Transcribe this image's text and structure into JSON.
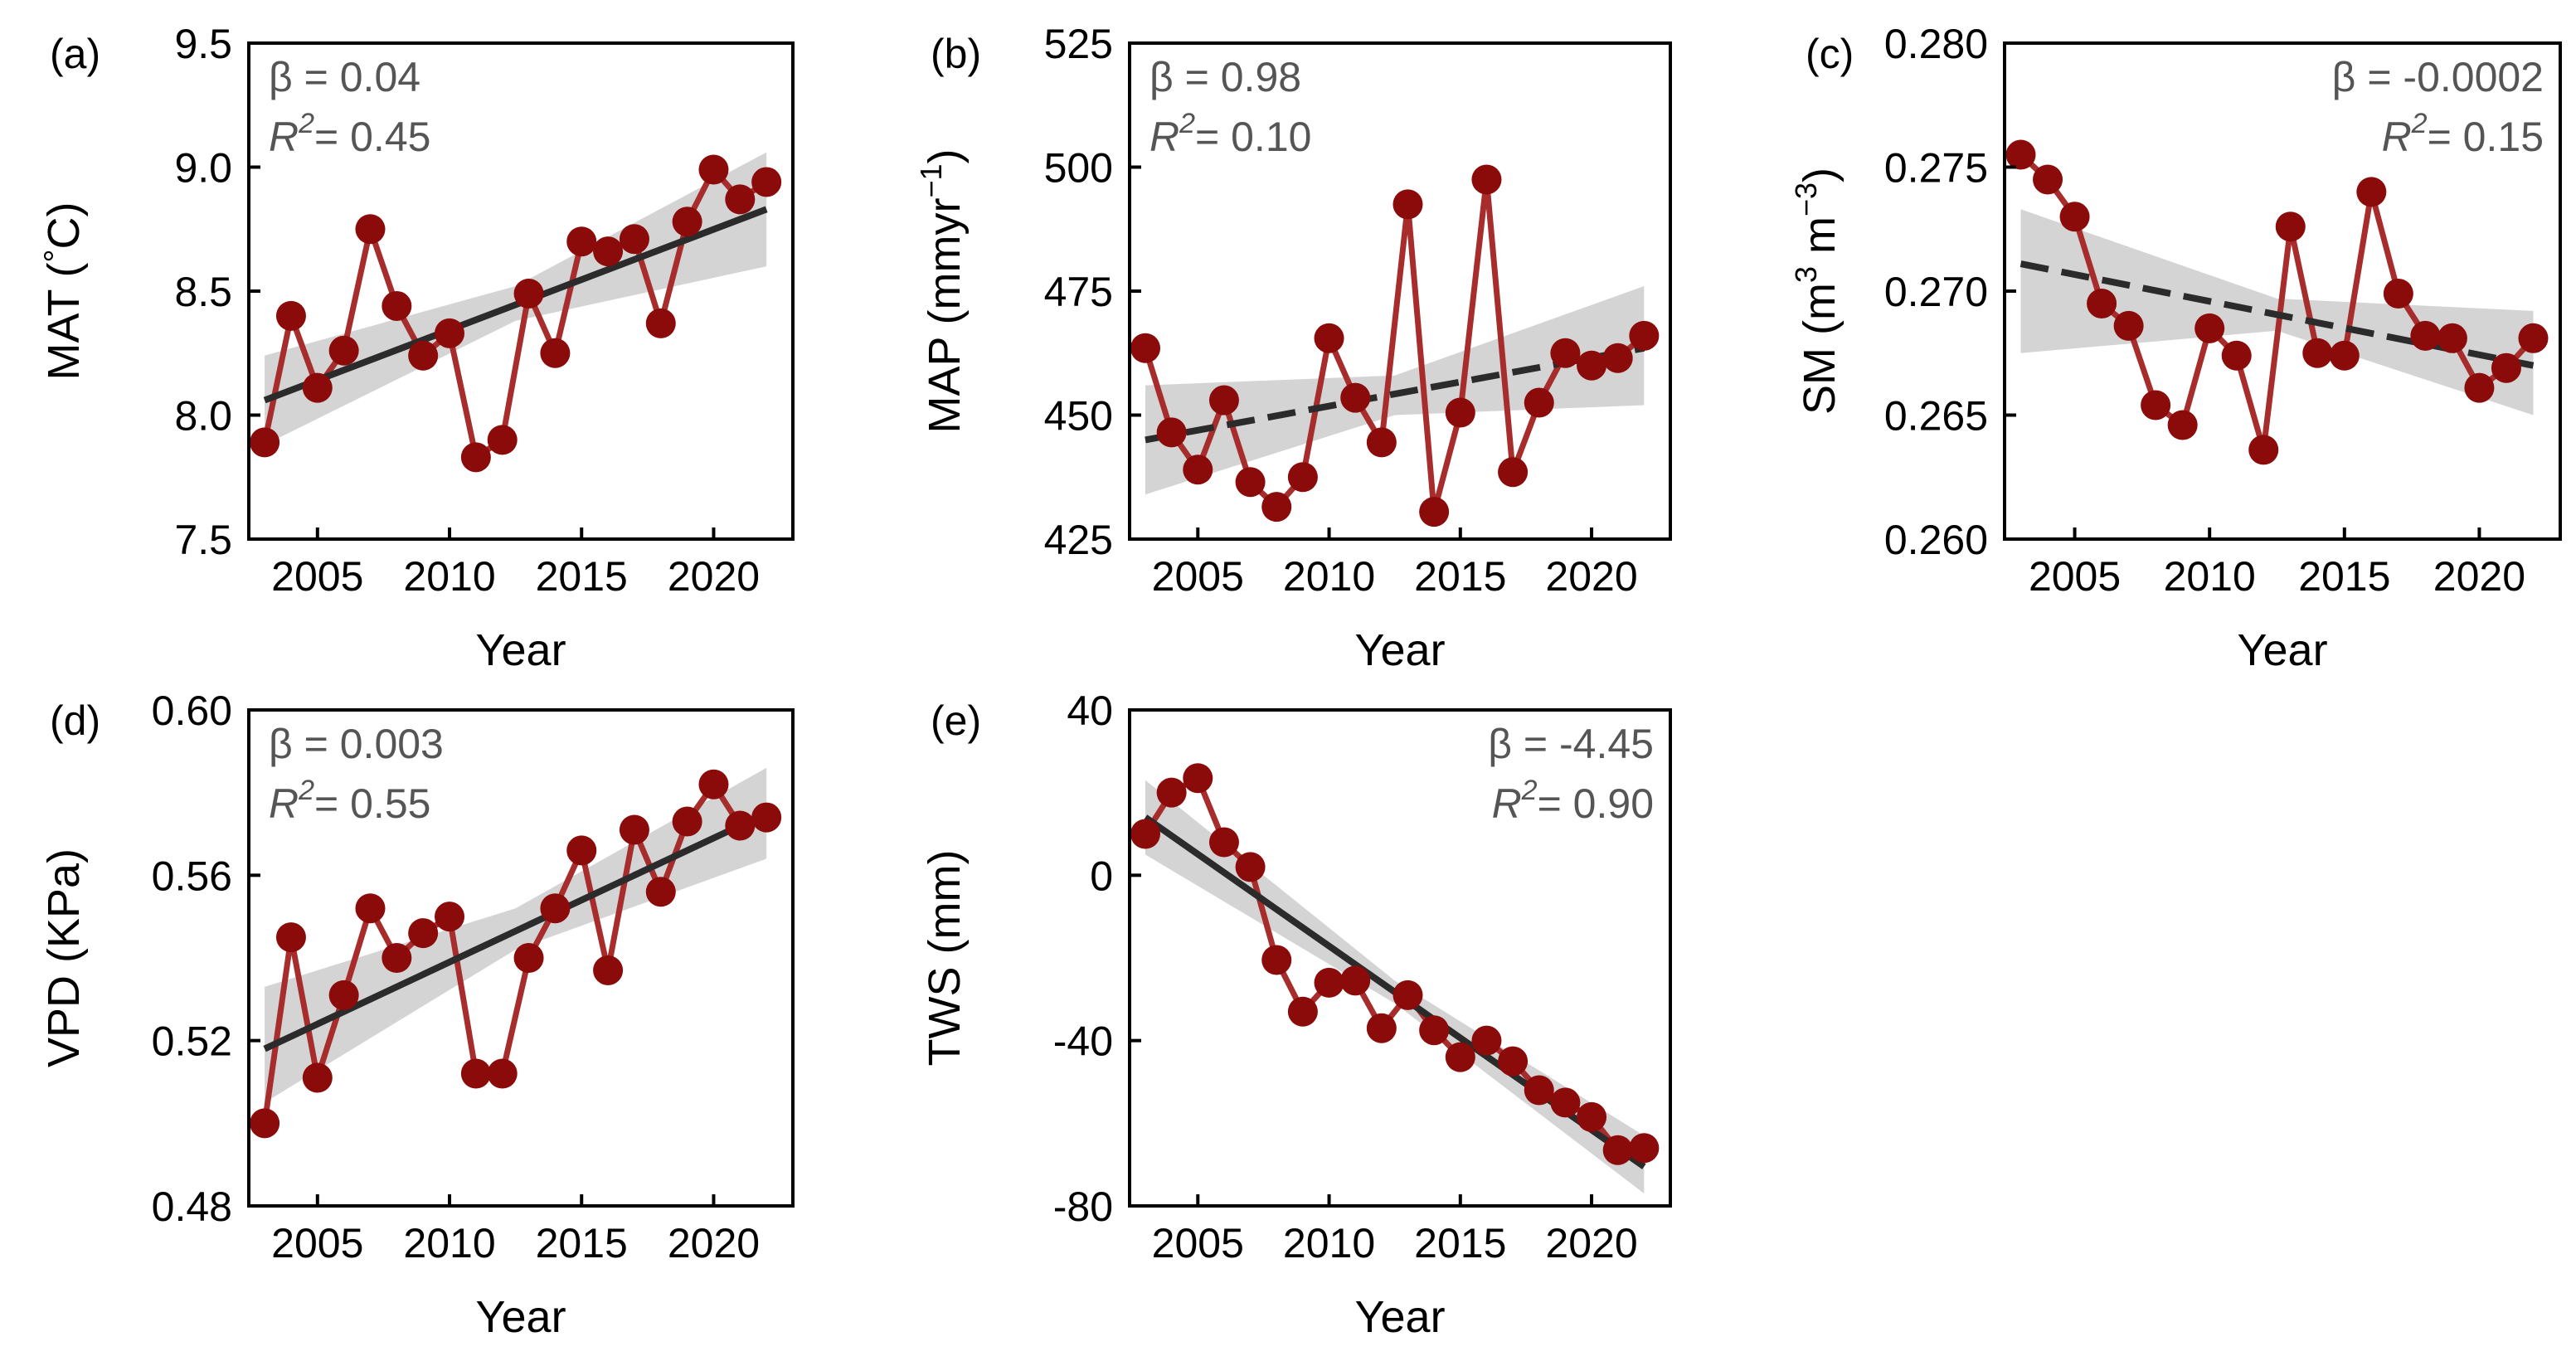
{
  "chart_data": [
    {
      "panel": "(a)",
      "type": "line",
      "xlabel": "Year",
      "ylabel": "MAT (°C)",
      "ylabel_parts": [
        "MAT (",
        "°",
        "C)"
      ],
      "xlim": [
        2002.4,
        2023.0
      ],
      "ylim": [
        7.5,
        9.5
      ],
      "xticks": [
        2005,
        2010,
        2015,
        2020
      ],
      "yticks": [
        7.5,
        8.0,
        8.5,
        9.0,
        9.5
      ],
      "ytick_labels": [
        "7.5",
        "8.0",
        "8.5",
        "9.0",
        "9.5"
      ],
      "x": [
        2003,
        2004,
        2005,
        2006,
        2007,
        2008,
        2009,
        2010,
        2011,
        2012,
        2013,
        2014,
        2015,
        2016,
        2017,
        2018,
        2019,
        2020,
        2021,
        2022
      ],
      "values": [
        7.89,
        8.4,
        8.11,
        8.26,
        8.75,
        8.44,
        8.24,
        8.33,
        7.83,
        7.9,
        8.49,
        8.25,
        8.7,
        8.66,
        8.71,
        8.37,
        8.78,
        8.99,
        8.87,
        8.94
      ],
      "stats": {
        "beta": "β = 0.04",
        "r2_prefix": "R",
        "r2_sup": "2",
        "r2_value": "= 0.45",
        "position": "top-left"
      },
      "trend": {
        "start": [
          2003,
          8.06
        ],
        "end": [
          2022,
          8.83
        ],
        "style": "solid"
      },
      "ci": {
        "start": [
          2003,
          7.88,
          8.24
        ],
        "mid": [
          2012.5,
          8.38,
          8.52
        ],
        "end": [
          2022,
          8.6,
          9.06
        ]
      },
      "colors": {
        "series": "#a72c2c",
        "points": "#8b0a0a",
        "trend": "#2b2b2b",
        "ci": "#d4d4d4"
      }
    },
    {
      "panel": "(b)",
      "type": "line",
      "xlabel": "Year",
      "ylabel": "MAP (mmyr−1)",
      "ylabel_parts": [
        "MAP (mmyr",
        "−1",
        ")"
      ],
      "xlim": [
        2002.4,
        2023.0
      ],
      "ylim": [
        425,
        525
      ],
      "xticks": [
        2005,
        2010,
        2015,
        2020
      ],
      "yticks": [
        425,
        450,
        475,
        500,
        525
      ],
      "ytick_labels": [
        "425",
        "450",
        "475",
        "500",
        "525"
      ],
      "x": [
        2003,
        2004,
        2005,
        2006,
        2007,
        2008,
        2009,
        2010,
        2011,
        2012,
        2013,
        2014,
        2015,
        2016,
        2017,
        2018,
        2019,
        2020,
        2021,
        2022
      ],
      "values": [
        463.5,
        446.5,
        439,
        453,
        436.5,
        431.5,
        437.5,
        465.5,
        453.5,
        444.5,
        492.5,
        430.5,
        450.5,
        497.5,
        438.5,
        452.5,
        462.5,
        460,
        461.5,
        466
      ],
      "stats": {
        "beta": "β = 0.98",
        "r2_prefix": "R",
        "r2_sup": "2",
        "r2_value": "= 0.10",
        "position": "top-left"
      },
      "trend": {
        "start": [
          2003,
          445
        ],
        "end": [
          2022,
          463.5
        ],
        "style": "dashed"
      },
      "ci": {
        "start": [
          2003,
          434,
          456
        ],
        "mid": [
          2012.5,
          450,
          458
        ],
        "end": [
          2022,
          452,
          476
        ]
      },
      "colors": {
        "series": "#a72c2c",
        "points": "#8b0a0a",
        "trend": "#2b2b2b",
        "ci": "#d4d4d4"
      }
    },
    {
      "panel": "(c)",
      "type": "line",
      "xlabel": "Year",
      "ylabel": "SM (m3 m−3)",
      "ylabel_parts": [
        "SM (m",
        "3",
        " m",
        "−3",
        ")"
      ],
      "xlim": [
        2002.4,
        2023.0
      ],
      "ylim": [
        0.26,
        0.28
      ],
      "xticks": [
        2005,
        2010,
        2015,
        2020
      ],
      "yticks": [
        0.26,
        0.265,
        0.27,
        0.275,
        0.28
      ],
      "ytick_labels": [
        "0.260",
        "0.265",
        "0.270",
        "0.275",
        "0.280"
      ],
      "x": [
        2003,
        2004,
        2005,
        2006,
        2007,
        2008,
        2009,
        2010,
        2011,
        2012,
        2013,
        2014,
        2015,
        2016,
        2017,
        2018,
        2019,
        2020,
        2021,
        2022
      ],
      "values": [
        0.2755,
        0.2745,
        0.273,
        0.2695,
        0.2686,
        0.2654,
        0.2646,
        0.2685,
        0.2674,
        0.2636,
        0.2726,
        0.2675,
        0.2674,
        0.274,
        0.2699,
        0.2682,
        0.2681,
        0.2661,
        0.2669,
        0.2681
      ],
      "stats": {
        "beta": "β = -0.0002",
        "r2_prefix": "R",
        "r2_sup": "2",
        "r2_value": "= 0.15",
        "position": "top-right"
      },
      "trend": {
        "start": [
          2003,
          0.2711
        ],
        "end": [
          2022,
          0.267
        ],
        "style": "dashed"
      },
      "ci": {
        "start": [
          2003,
          0.2675,
          0.2733
        ],
        "mid": [
          2012.5,
          0.2684,
          0.2697
        ],
        "end": [
          2022,
          0.265,
          0.2692
        ]
      },
      "colors": {
        "series": "#a72c2c",
        "points": "#8b0a0a",
        "trend": "#2b2b2b",
        "ci": "#d4d4d4"
      }
    },
    {
      "panel": "(d)",
      "type": "line",
      "xlabel": "Year",
      "ylabel": "VPD (KPa)",
      "ylabel_parts": [
        "VPD (KPa)"
      ],
      "xlim": [
        2002.4,
        2023.0
      ],
      "ylim": [
        0.48,
        0.6
      ],
      "xticks": [
        2005,
        2010,
        2015,
        2020
      ],
      "yticks": [
        0.48,
        0.52,
        0.56,
        0.6
      ],
      "ytick_labels": [
        "0.48",
        "0.52",
        "0.56",
        "0.60"
      ],
      "x": [
        2003,
        2004,
        2005,
        2006,
        2007,
        2008,
        2009,
        2010,
        2011,
        2012,
        2013,
        2014,
        2015,
        2016,
        2017,
        2018,
        2019,
        2020,
        2021,
        2022
      ],
      "values": [
        0.5,
        0.545,
        0.511,
        0.531,
        0.552,
        0.54,
        0.546,
        0.55,
        0.512,
        0.512,
        0.54,
        0.552,
        0.566,
        0.537,
        0.571,
        0.556,
        0.573,
        0.582,
        0.572,
        0.574
      ],
      "stats": {
        "beta": "β = 0.003",
        "r2_prefix": "R",
        "r2_sup": "2",
        "r2_value": "= 0.55",
        "position": "top-left"
      },
      "trend": {
        "start": [
          2003,
          0.518
        ],
        "end": [
          2022,
          0.575
        ],
        "style": "solid"
      },
      "ci": {
        "start": [
          2003,
          0.505,
          0.533
        ],
        "mid": [
          2012.5,
          0.542,
          0.552
        ],
        "end": [
          2022,
          0.564,
          0.586
        ]
      },
      "colors": {
        "series": "#a72c2c",
        "points": "#8b0a0a",
        "trend": "#2b2b2b",
        "ci": "#d4d4d4"
      }
    },
    {
      "panel": "(e)",
      "type": "line",
      "xlabel": "Year",
      "ylabel": "TWS (mm)",
      "ylabel_parts": [
        "TWS (mm)"
      ],
      "xlim": [
        2002.4,
        2023.0
      ],
      "ylim": [
        -80,
        40
      ],
      "xticks": [
        2005,
        2010,
        2015,
        2020
      ],
      "yticks": [
        -80,
        -40,
        0,
        40
      ],
      "ytick_labels": [
        "-80",
        "-40",
        "0",
        "40"
      ],
      "x": [
        2003,
        2004,
        2005,
        2006,
        2007,
        2008,
        2009,
        2010,
        2011,
        2012,
        2013,
        2014,
        2015,
        2016,
        2017,
        2018,
        2019,
        2020,
        2021,
        2022
      ],
      "values": [
        10,
        20,
        23.5,
        8,
        2,
        -20.5,
        -33,
        -26,
        -25.5,
        -37,
        -29,
        -37.5,
        -44,
        -40,
        -45,
        -52,
        -55,
        -58.5,
        -66.5,
        -66
      ],
      "stats": {
        "beta": "β = -4.45",
        "r2_prefix": "R",
        "r2_sup": "2",
        "r2_value": "= 0.90",
        "position": "top-right"
      },
      "trend": {
        "start": [
          2003,
          14
        ],
        "end": [
          2022,
          -70.5
        ],
        "style": "solid"
      },
      "ci": {
        "start": [
          2003,
          5,
          23
        ],
        "mid": [
          2012.5,
          -31,
          -25.5
        ],
        "end": [
          2022,
          -77,
          -63
        ]
      },
      "colors": {
        "series": "#a72c2c",
        "points": "#8b0a0a",
        "trend": "#2b2b2b",
        "ci": "#d4d4d4"
      }
    }
  ]
}
